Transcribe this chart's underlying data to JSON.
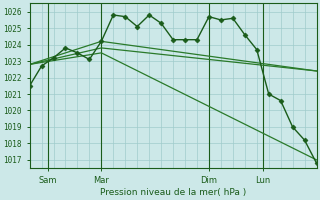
{
  "title": "Pression niveau de la mer( hPa )",
  "ylabel_ticks": [
    1017,
    1018,
    1019,
    1020,
    1021,
    1022,
    1023,
    1024,
    1025,
    1026
  ],
  "ylim": [
    1016.5,
    1026.5
  ],
  "xlim": [
    0,
    96
  ],
  "bg_color": "#cce8e8",
  "grid_color": "#a0cccc",
  "line_color_dark": "#1a5c1a",
  "line_color_mid": "#2a7a2a",
  "xtick_labels": [
    "Sam",
    "Mar",
    "Dim",
    "Lun"
  ],
  "xtick_positions": [
    6,
    24,
    60,
    78
  ],
  "vline_positions": [
    6,
    24,
    60,
    78
  ],
  "series1_x": [
    0,
    4,
    8,
    12,
    16,
    20,
    24,
    28,
    32,
    36,
    40,
    44,
    48,
    52,
    56,
    60,
    64,
    68,
    72,
    76,
    80,
    84,
    88,
    92,
    96
  ],
  "series1_y": [
    1021.5,
    1022.7,
    1023.2,
    1023.8,
    1023.5,
    1023.1,
    1024.2,
    1025.8,
    1025.7,
    1025.1,
    1025.8,
    1025.3,
    1024.3,
    1024.3,
    1024.3,
    1025.7,
    1025.5,
    1025.6,
    1024.6,
    1023.7,
    1021.0,
    1020.6,
    1019.0,
    1018.2,
    1016.8
  ],
  "series2_x": [
    0,
    24,
    96
  ],
  "series2_y": [
    1022.8,
    1024.2,
    1022.4
  ],
  "series3_x": [
    0,
    24,
    96
  ],
  "series3_y": [
    1022.8,
    1023.8,
    1022.4
  ],
  "series4_x": [
    0,
    24,
    96
  ],
  "series4_y": [
    1022.8,
    1023.5,
    1017.0
  ],
  "marker_style": "D",
  "markersize": 2.5
}
